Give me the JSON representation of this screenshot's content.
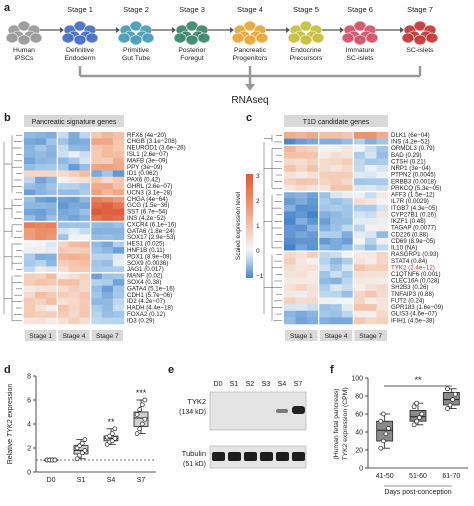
{
  "panel_a": {
    "label": "a",
    "stages": [
      {
        "name": "",
        "sub": "Human\niPSCs",
        "color": "#9a9a9a"
      },
      {
        "name": "Stage 1",
        "sub": "Definitive\nEndoderm",
        "color": "#4a72c4"
      },
      {
        "name": "Stage 2",
        "sub": "Primitive\nGut Tube",
        "color": "#4aa0b8"
      },
      {
        "name": "Stage 3",
        "sub": "Posterior\nForegut",
        "color": "#3f8a6e"
      },
      {
        "name": "Stage 4",
        "sub": "Pancreatic\nProgenitors",
        "color": "#e8a83a"
      },
      {
        "name": "Stage 5",
        "sub": "Endocrine\nPrecursors",
        "color": "#c8c040"
      },
      {
        "name": "Stage 6",
        "sub": "Immature\nSC-islets",
        "color": "#d4546a"
      },
      {
        "name": "Stage 7",
        "sub": "SC-islets",
        "color": "#c73a3a"
      }
    ],
    "rnaseq": "RNAseq"
  },
  "panel_b": {
    "label": "b",
    "title": "Pancreatic signature genes",
    "genes": [
      "RFX6 (4e−20)",
      "CHGB (3.1e−208)",
      "NEUROD1 (3.6e−26)",
      "ISL1 (2.6e−07)",
      "MAFB (3e−09)",
      "PPY (3e−09)",
      "ID1 (0.062)",
      "PAX6 (0.42)",
      "GHRL (2.6e−07)",
      "UCN3 (3.1e−28)",
      "CHGA (4e−64)",
      "GCG (1.5e−36)",
      "SST (6.7e−54)",
      "INS (4.2e−52)",
      "CXCR4 (6.1e−16)",
      "GATA6 (1.8e−24)",
      "SOX17 (2.9e−53)",
      "HES1 (0.025)",
      "HNF1B (0.11)",
      "PDX1 (8.9e−09)",
      "SOX9 (0.0036)",
      "JAG1 (0.017)",
      "MANF (0.02)",
      "SOX4 (0.38)",
      "GATA4 (5.1e−16)",
      "CDH1 (5.7e−06)",
      "ID2 (4.2e−07)",
      "HADH (4.4e−18)",
      "FOXA2 (0.12)",
      "ID3 (0.29)"
    ],
    "stages": [
      "Stage 1",
      "Stage 4",
      "Stage 7"
    ]
  },
  "legend": {
    "title": "Scaled expression level",
    "ticks": [
      "3",
      "2",
      "1",
      "0",
      "−1"
    ]
  },
  "panel_c": {
    "label": "c",
    "title": "T1D candidate genes",
    "genes": [
      "DLK1 (6e−04)",
      "INS (4.2e−52)",
      "ORMDL3 (0.79)",
      "BAD (0.29)",
      "CTSH (0.21)",
      "NRP1 (3e−04)",
      "PTPN2 (0.0045)",
      "ERBB3 (0.0018)",
      "PRKCQ (5.3e−05)",
      "AFF3 (1.5e−12)",
      "IL7R (0.0029)",
      "ITGB7 (4.3e−05)",
      "CYP27B1 (0.26)",
      "IKZF1 (0.48)",
      "TAGAP (0.0077)",
      "CD226 (0.88)",
      "CD69 (8.9e−05)",
      "IL10 (NA)",
      "RASGRP1 (0.93)",
      "STAT4 (0.84)",
      "TYK2 (2.4e−12)",
      "C1QTNF6 (0.001)",
      "CLEC16A (0.028)",
      "SH2B3 (0.26)",
      "TNFAIP3 (0.88)",
      "FUT2 (0.24)",
      "GPR183 (1.6e−09)",
      "GLIS3 (4.6e−07)",
      "IFIH1 (4.5e−38)"
    ],
    "highlight_index": 20,
    "highlight_color": "#d0302a",
    "stages": [
      "Stage 1",
      "Stage 4",
      "Stage 7"
    ]
  },
  "chart_data": [
    {
      "type": "scatter",
      "panel": "d",
      "ylabel": "Relative TYK2 expression",
      "categories": [
        "D0",
        "S1",
        "S4",
        "S7"
      ],
      "ylim": [
        0,
        8
      ],
      "yticks": [
        "0",
        "2",
        "4",
        "6",
        "8"
      ],
      "significance": [
        "",
        "",
        "**",
        "***"
      ],
      "points": [
        [
          1,
          1,
          1,
          1,
          1,
          1,
          1,
          1
        ],
        [
          1.1,
          1.4,
          1.6,
          1.8,
          2.0,
          2.2,
          2.4,
          2.7
        ],
        [
          2.3,
          2.5,
          2.6,
          2.8,
          2.9,
          3.0,
          3.2,
          3.6
        ],
        [
          3.2,
          3.6,
          4.0,
          4.4,
          4.8,
          5.2,
          5.6,
          6.0
        ]
      ],
      "boxes": [
        [
          1,
          1,
          1,
          1,
          1
        ],
        [
          1.1,
          1.5,
          1.8,
          2.2,
          2.7
        ],
        [
          2.3,
          2.6,
          2.8,
          3.0,
          3.6
        ],
        [
          3.2,
          3.8,
          4.5,
          5.0,
          6.0
        ]
      ]
    },
    {
      "type": "scatter",
      "panel": "f",
      "ylabel": "(Human fetal pancreas) TYK2 expression (CPM)",
      "xlabel": "Days post-conception",
      "categories": [
        "41-50",
        "51-60",
        "61-70"
      ],
      "ylim": [
        0,
        100
      ],
      "yticks": [
        "0",
        "20",
        "40",
        "60",
        "80",
        "100"
      ],
      "significance": "**",
      "points": [
        [
          22,
          30,
          38,
          44,
          52,
          60
        ],
        [
          48,
          52,
          56,
          60,
          68,
          72
        ],
        [
          66,
          70,
          76,
          82,
          88
        ]
      ],
      "boxes": [
        [
          22,
          30,
          42,
          52,
          60
        ],
        [
          48,
          52,
          57,
          64,
          72
        ],
        [
          66,
          70,
          76,
          84,
          88
        ]
      ]
    }
  ],
  "panel_d": {
    "label": "d"
  },
  "panel_e": {
    "label": "e",
    "lanes": [
      "D0",
      "S1",
      "S2",
      "S3",
      "S4",
      "S7"
    ],
    "band1": "TYK2",
    "band1_kda": "(134 kD)",
    "band2": "Tubulin",
    "band2_kda": "(51 kD)"
  },
  "panel_f": {
    "label": "f"
  }
}
